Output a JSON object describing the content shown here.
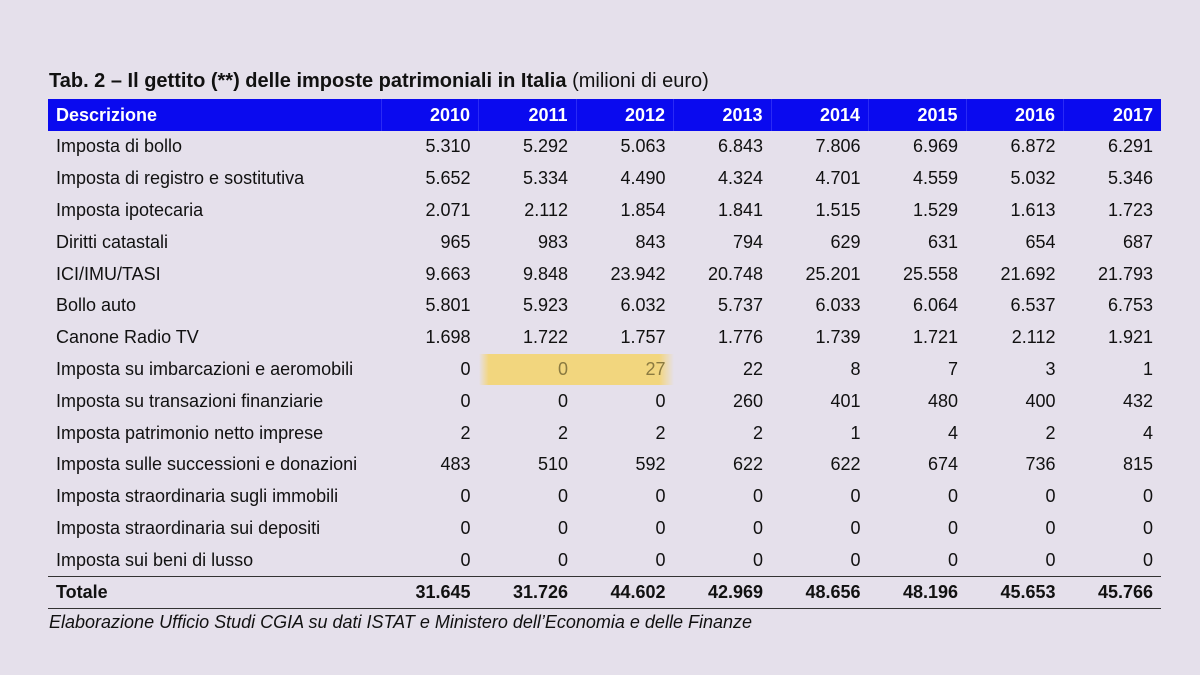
{
  "title": {
    "bold": "Tab. 2 – Il gettito (**) delle imposte patrimoniali in Italia",
    "unit": "(milioni di euro)"
  },
  "table": {
    "headers": [
      "Descrizione",
      "2010",
      "2011",
      "2012",
      "2013",
      "2014",
      "2015",
      "2016",
      "2017"
    ],
    "rows": [
      [
        "Imposta di bollo",
        "5.310",
        "5.292",
        "5.063",
        "6.843",
        "7.806",
        "6.969",
        "6.872",
        "6.291"
      ],
      [
        "Imposta di registro e sostitutiva",
        "5.652",
        "5.334",
        "4.490",
        "4.324",
        "4.701",
        "4.559",
        "5.032",
        "5.346"
      ],
      [
        "Imposta ipotecaria",
        "2.071",
        "2.112",
        "1.854",
        "1.841",
        "1.515",
        "1.529",
        "1.613",
        "1.723"
      ],
      [
        "Diritti catastali",
        "965",
        "983",
        "843",
        "794",
        "629",
        "631",
        "654",
        "687"
      ],
      [
        "ICI/IMU/TASI",
        "9.663",
        "9.848",
        "23.942",
        "20.748",
        "25.201",
        "25.558",
        "21.692",
        "21.793"
      ],
      [
        "Bollo auto",
        "5.801",
        "5.923",
        "6.032",
        "5.737",
        "6.033",
        "6.064",
        "6.537",
        "6.753"
      ],
      [
        "Canone Radio TV",
        "1.698",
        "1.722",
        "1.757",
        "1.776",
        "1.739",
        "1.721",
        "2.112",
        "1.921"
      ],
      [
        "Imposta su imbarcazioni e aeromobili",
        "0",
        "0",
        "27",
        "22",
        "8",
        "7",
        "3",
        "1"
      ],
      [
        "Imposta su transazioni finanziarie",
        "0",
        "0",
        "0",
        "260",
        "401",
        "480",
        "400",
        "432"
      ],
      [
        "Imposta patrimonio netto imprese",
        "2",
        "2",
        "2",
        "2",
        "1",
        "4",
        "2",
        "4"
      ],
      [
        "Imposta sulle successioni e donazioni",
        "483",
        "510",
        "592",
        "622",
        "622",
        "674",
        "736",
        "815"
      ],
      [
        "Imposta straordinaria sugli immobili",
        "0",
        "0",
        "0",
        "0",
        "0",
        "0",
        "0",
        "0"
      ],
      [
        "Imposta straordinaria sui depositi",
        "0",
        "0",
        "0",
        "0",
        "0",
        "0",
        "0",
        "0"
      ],
      [
        "Imposta sui beni di lusso",
        "0",
        "0",
        "0",
        "0",
        "0",
        "0",
        "0",
        "0"
      ]
    ],
    "total": [
      "Totale",
      "31.645",
      "31.726",
      "44.602",
      "42.969",
      "48.656",
      "48.196",
      "45.653",
      "45.766"
    ]
  },
  "source": "Elaborazione Ufficio Studi CGIA su dati ISTAT e Ministero dell’Economia e delle Finanze",
  "colors": {
    "header_bg": "#0a0aef",
    "page_bg": "#e5e0eb",
    "highlight": "#f7d25a"
  }
}
